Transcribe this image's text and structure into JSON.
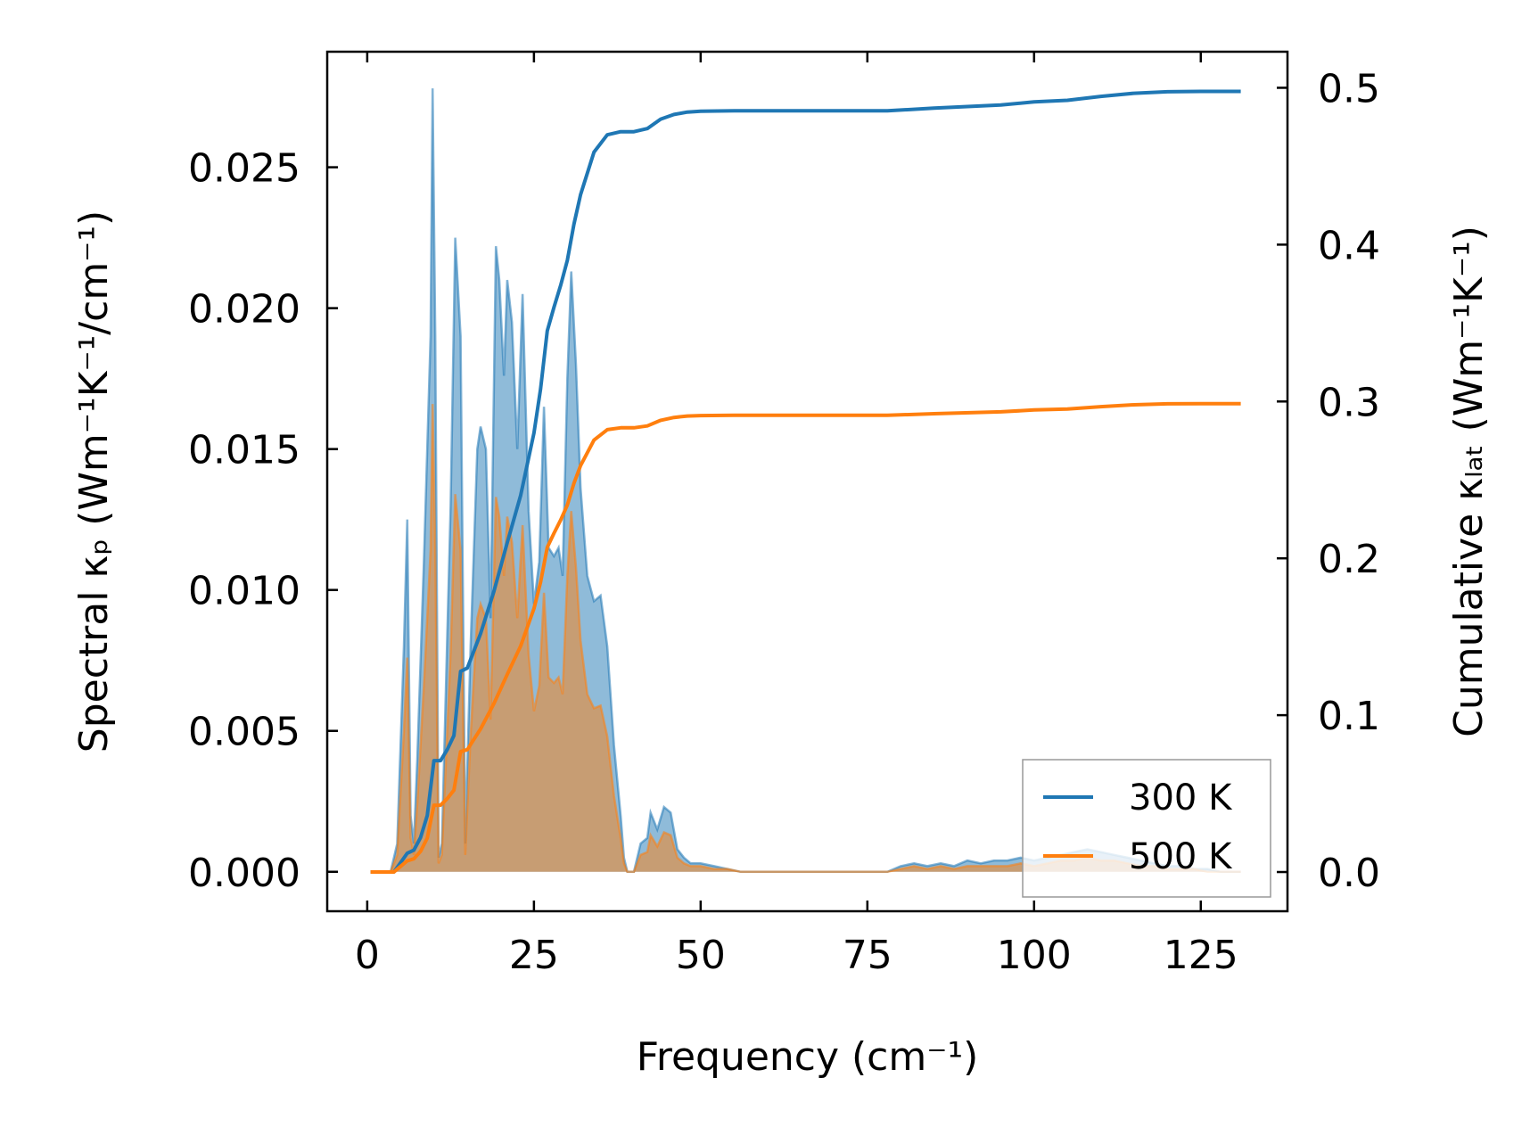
{
  "chart_data": {
    "type": "area",
    "xlabel": "Frequency (cm⁻¹)",
    "ylabel_left": "Spectral κₚ (Wm⁻¹K⁻¹/cm⁻¹)",
    "ylabel_right": "Cumulative κₗₐₜ (Wm⁻¹K⁻¹)",
    "xlim": [
      -6,
      138
    ],
    "ylim_left": [
      -0.0014,
      0.0291
    ],
    "ylim_right": [
      -0.025,
      0.523
    ],
    "xticks": [
      "0",
      "25",
      "50",
      "75",
      "100",
      "125"
    ],
    "yticks_left": [
      "0.000",
      "0.005",
      "0.010",
      "0.015",
      "0.020",
      "0.025"
    ],
    "yticks_right": [
      "0.0",
      "0.1",
      "0.2",
      "0.3",
      "0.4",
      "0.5"
    ],
    "legend_position": "lower-right",
    "series": [
      {
        "name": "300 K",
        "color": "#1f77b4",
        "spectral": [
          [
            0.5,
            0
          ],
          [
            3.5,
            0
          ],
          [
            4.5,
            0.001
          ],
          [
            5.5,
            0.008
          ],
          [
            6,
            0.0125
          ],
          [
            6.5,
            0.002
          ],
          [
            7,
            0.001
          ],
          [
            7.5,
            0.004
          ],
          [
            8.5,
            0.011
          ],
          [
            9.5,
            0.019
          ],
          [
            9.8,
            0.0278
          ],
          [
            10.2,
            0.019
          ],
          [
            10.7,
            0.0005
          ],
          [
            11.2,
            0.001
          ],
          [
            12.5,
            0.013
          ],
          [
            13.2,
            0.0225
          ],
          [
            14,
            0.019
          ],
          [
            14.7,
            0.001
          ],
          [
            15.5,
            0.008
          ],
          [
            16.5,
            0.015
          ],
          [
            17,
            0.0158
          ],
          [
            17.8,
            0.015
          ],
          [
            18.5,
            0.009
          ],
          [
            19.3,
            0.0222
          ],
          [
            19.8,
            0.021
          ],
          [
            20.5,
            0.0176
          ],
          [
            21,
            0.021
          ],
          [
            21.7,
            0.0195
          ],
          [
            22.5,
            0.015
          ],
          [
            23.3,
            0.0205
          ],
          [
            24.2,
            0.0128
          ],
          [
            25,
            0.0095
          ],
          [
            25.8,
            0.011
          ],
          [
            26.5,
            0.0165
          ],
          [
            27.2,
            0.0115
          ],
          [
            28,
            0.0112
          ],
          [
            28.7,
            0.0115
          ],
          [
            29.3,
            0.0105
          ],
          [
            30,
            0.0175
          ],
          [
            30.6,
            0.0213
          ],
          [
            31.3,
            0.018
          ],
          [
            32,
            0.0136
          ],
          [
            33,
            0.0105
          ],
          [
            34,
            0.0096
          ],
          [
            35,
            0.0098
          ],
          [
            36,
            0.008
          ],
          [
            37,
            0.0045
          ],
          [
            38,
            0.002
          ],
          [
            38.5,
            0.0005
          ],
          [
            39,
            0
          ],
          [
            40,
            0
          ],
          [
            41,
            0.001
          ],
          [
            42,
            0.0012
          ],
          [
            42.5,
            0.0021
          ],
          [
            43.5,
            0.0015
          ],
          [
            44.5,
            0.0023
          ],
          [
            45.5,
            0.0021
          ],
          [
            46.5,
            0.0008
          ],
          [
            47.5,
            0.0005
          ],
          [
            48.5,
            0.0003
          ],
          [
            50,
            0.0003
          ],
          [
            52,
            0.0002
          ],
          [
            54,
            0.0001
          ],
          [
            56,
            0
          ],
          [
            78,
            0
          ],
          [
            80,
            0.0002
          ],
          [
            82,
            0.0003
          ],
          [
            84,
            0.0002
          ],
          [
            86,
            0.0003
          ],
          [
            88,
            0.0002
          ],
          [
            90,
            0.0004
          ],
          [
            92,
            0.0003
          ],
          [
            94,
            0.0004
          ],
          [
            96,
            0.0004
          ],
          [
            98,
            0.0005
          ],
          [
            100,
            0.0004
          ],
          [
            102,
            0.0005
          ],
          [
            104,
            0.0006
          ],
          [
            106,
            0.0007
          ],
          [
            108,
            0.0008
          ],
          [
            110,
            0.0007
          ],
          [
            112,
            0.0006
          ],
          [
            114,
            0.0005
          ],
          [
            116,
            0.0004
          ],
          [
            118,
            0.0003
          ],
          [
            120,
            0.0002
          ],
          [
            122,
            0.0002
          ],
          [
            124,
            0.0001
          ],
          [
            126,
            0.0001
          ],
          [
            128,
            0
          ],
          [
            131,
            0
          ]
        ],
        "cumulative": [
          [
            0.5,
            0
          ],
          [
            4,
            0
          ],
          [
            5,
            0.006
          ],
          [
            6,
            0.012
          ],
          [
            7,
            0.014
          ],
          [
            8,
            0.022
          ],
          [
            9,
            0.036
          ],
          [
            10,
            0.071
          ],
          [
            11,
            0.071
          ],
          [
            12,
            0.078
          ],
          [
            13,
            0.087
          ],
          [
            14,
            0.128
          ],
          [
            15,
            0.13
          ],
          [
            17,
            0.152
          ],
          [
            19,
            0.179
          ],
          [
            21,
            0.21
          ],
          [
            23,
            0.24
          ],
          [
            25,
            0.28
          ],
          [
            26,
            0.308
          ],
          [
            27,
            0.345
          ],
          [
            28,
            0.36
          ],
          [
            29,
            0.374
          ],
          [
            30,
            0.39
          ],
          [
            31,
            0.413
          ],
          [
            32,
            0.432
          ],
          [
            34,
            0.459
          ],
          [
            36,
            0.47
          ],
          [
            38,
            0.472
          ],
          [
            40,
            0.472
          ],
          [
            42,
            0.474
          ],
          [
            44,
            0.48
          ],
          [
            46,
            0.483
          ],
          [
            48,
            0.4845
          ],
          [
            50,
            0.485
          ],
          [
            55,
            0.4853
          ],
          [
            60,
            0.4853
          ],
          [
            70,
            0.4853
          ],
          [
            78,
            0.4853
          ],
          [
            85,
            0.487
          ],
          [
            95,
            0.489
          ],
          [
            100,
            0.491
          ],
          [
            105,
            0.492
          ],
          [
            110,
            0.4945
          ],
          [
            115,
            0.4965
          ],
          [
            120,
            0.4975
          ],
          [
            125,
            0.4977
          ],
          [
            131,
            0.4977
          ]
        ]
      },
      {
        "name": "500 K",
        "color": "#ff7f0e",
        "spectral": [
          [
            0.5,
            0
          ],
          [
            3.5,
            0
          ],
          [
            4.5,
            0.0006
          ],
          [
            5.5,
            0.005
          ],
          [
            6,
            0.0076
          ],
          [
            6.5,
            0.0012
          ],
          [
            7,
            0.0006
          ],
          [
            7.5,
            0.0024
          ],
          [
            8.5,
            0.0066
          ],
          [
            9.5,
            0.0114
          ],
          [
            9.8,
            0.0166
          ],
          [
            10.2,
            0.0114
          ],
          [
            10.7,
            0.0003
          ],
          [
            11.2,
            0.0006
          ],
          [
            12.5,
            0.0078
          ],
          [
            13.2,
            0.0134
          ],
          [
            14,
            0.0114
          ],
          [
            14.7,
            0.0006
          ],
          [
            15.5,
            0.0048
          ],
          [
            16.5,
            0.009
          ],
          [
            17,
            0.0095
          ],
          [
            17.8,
            0.009
          ],
          [
            18.5,
            0.0054
          ],
          [
            19.3,
            0.0133
          ],
          [
            19.8,
            0.0126
          ],
          [
            20.5,
            0.0105
          ],
          [
            21,
            0.0126
          ],
          [
            21.7,
            0.0117
          ],
          [
            22.5,
            0.009
          ],
          [
            23.3,
            0.0123
          ],
          [
            24.2,
            0.0077
          ],
          [
            25,
            0.0057
          ],
          [
            25.8,
            0.0066
          ],
          [
            26.5,
            0.0099
          ],
          [
            27.2,
            0.0069
          ],
          [
            28,
            0.0067
          ],
          [
            28.7,
            0.0069
          ],
          [
            29.3,
            0.0063
          ],
          [
            30,
            0.0105
          ],
          [
            30.6,
            0.0128
          ],
          [
            31.3,
            0.0108
          ],
          [
            32,
            0.0082
          ],
          [
            33,
            0.0063
          ],
          [
            34,
            0.0058
          ],
          [
            35,
            0.0059
          ],
          [
            36,
            0.0048
          ],
          [
            37,
            0.0027
          ],
          [
            38,
            0.0012
          ],
          [
            38.5,
            0.0003
          ],
          [
            39,
            0
          ],
          [
            40,
            0
          ],
          [
            41,
            0.0006
          ],
          [
            42,
            0.0007
          ],
          [
            42.5,
            0.0013
          ],
          [
            43.5,
            0.0009
          ],
          [
            44.5,
            0.0014
          ],
          [
            45.5,
            0.0013
          ],
          [
            46.5,
            0.0005
          ],
          [
            47.5,
            0.0003
          ],
          [
            48.5,
            0.0002
          ],
          [
            50,
            0.0002
          ],
          [
            52,
            0.0001
          ],
          [
            54,
            0.0001
          ],
          [
            56,
            0
          ],
          [
            78,
            0
          ],
          [
            80,
            0.0001
          ],
          [
            82,
            0.0002
          ],
          [
            84,
            0.0001
          ],
          [
            86,
            0.0002
          ],
          [
            88,
            0.0001
          ],
          [
            90,
            0.0002
          ],
          [
            92,
            0.0002
          ],
          [
            94,
            0.0002
          ],
          [
            96,
            0.0002
          ],
          [
            98,
            0.0003
          ],
          [
            100,
            0.0002
          ],
          [
            102,
            0.0003
          ],
          [
            104,
            0.0004
          ],
          [
            106,
            0.0004
          ],
          [
            108,
            0.0005
          ],
          [
            110,
            0.0004
          ],
          [
            112,
            0.0004
          ],
          [
            114,
            0.0003
          ],
          [
            116,
            0.0002
          ],
          [
            118,
            0.0002
          ],
          [
            120,
            0.0001
          ],
          [
            122,
            0.0001
          ],
          [
            124,
            0.0001
          ],
          [
            126,
            0
          ],
          [
            128,
            0
          ],
          [
            131,
            0
          ]
        ],
        "cumulative": [
          [
            0.5,
            0
          ],
          [
            4,
            0
          ],
          [
            5,
            0.0036
          ],
          [
            6,
            0.0072
          ],
          [
            7,
            0.0084
          ],
          [
            8,
            0.0132
          ],
          [
            9,
            0.0216
          ],
          [
            10,
            0.0426
          ],
          [
            11,
            0.0426
          ],
          [
            12,
            0.0468
          ],
          [
            13,
            0.0522
          ],
          [
            14,
            0.0768
          ],
          [
            15,
            0.078
          ],
          [
            17,
            0.0912
          ],
          [
            19,
            0.1074
          ],
          [
            21,
            0.126
          ],
          [
            23,
            0.144
          ],
          [
            25,
            0.168
          ],
          [
            26,
            0.1848
          ],
          [
            27,
            0.207
          ],
          [
            28,
            0.216
          ],
          [
            29,
            0.2244
          ],
          [
            30,
            0.234
          ],
          [
            31,
            0.2478
          ],
          [
            32,
            0.2592
          ],
          [
            34,
            0.2754
          ],
          [
            36,
            0.282
          ],
          [
            38,
            0.2832
          ],
          [
            40,
            0.2832
          ],
          [
            42,
            0.2844
          ],
          [
            44,
            0.288
          ],
          [
            46,
            0.2898
          ],
          [
            48,
            0.2907
          ],
          [
            50,
            0.291
          ],
          [
            55,
            0.2912
          ],
          [
            60,
            0.2912
          ],
          [
            70,
            0.2912
          ],
          [
            78,
            0.2912
          ],
          [
            85,
            0.2922
          ],
          [
            95,
            0.2934
          ],
          [
            100,
            0.2946
          ],
          [
            105,
            0.2952
          ],
          [
            110,
            0.2967
          ],
          [
            115,
            0.2979
          ],
          [
            120,
            0.2985
          ],
          [
            125,
            0.2986
          ],
          [
            131,
            0.2986
          ]
        ]
      }
    ]
  }
}
